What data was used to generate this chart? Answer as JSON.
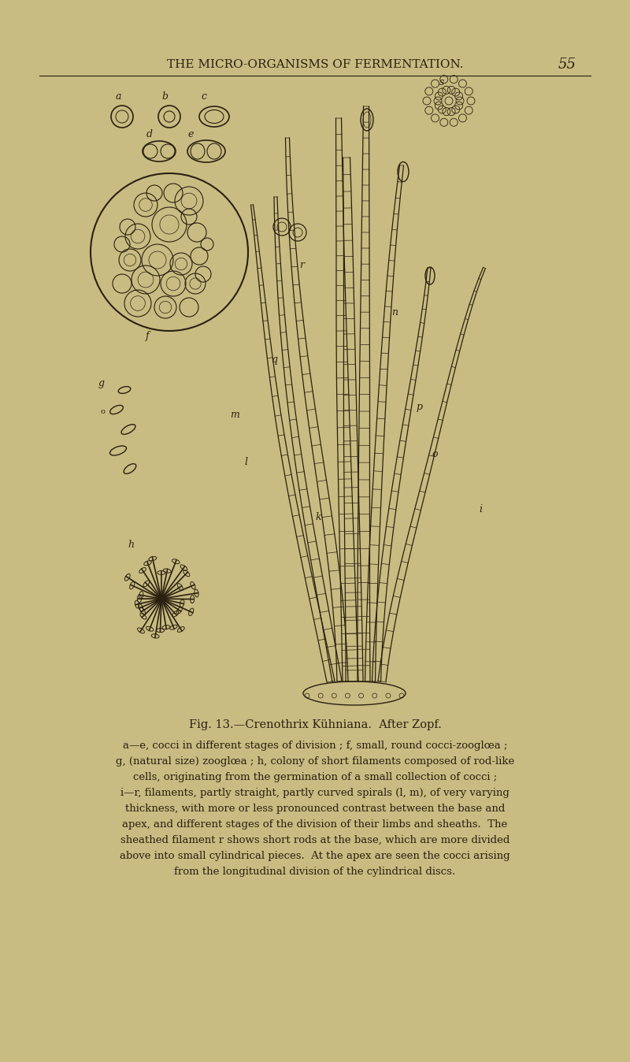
{
  "background_color": "#c9bc82",
  "ink_color": "#2a2010",
  "header_text": "THE MICRO-ORGANISMS OF FERMENTATION.",
  "header_page_num": "55",
  "caption_title": "Fig. 13.—Crenothrix Kühniana.  After Zopf.",
  "caption_body_lines": [
    "a—e, cocci in different stages of division ; f, small, round cocci-zooglœa ;",
    "g, (natural size) zooglœa ; h, colony of short filaments composed of rod-like",
    "cells, originating from the germination of a small collection of cocci ;",
    "i—r, filaments, partly straight, partly curved spirals (l, m), of very varying",
    "thickness, with more or less pronounced contrast between the base and",
    "apex, and different stages of the division of their limbs and sheaths.  The",
    "sheathed filament r shows short rods at the base, which are more divided",
    "above into small cylindrical pieces.  At the apex are seen the cocci arising",
    "from the longitudinal division of the cylindrical discs."
  ]
}
